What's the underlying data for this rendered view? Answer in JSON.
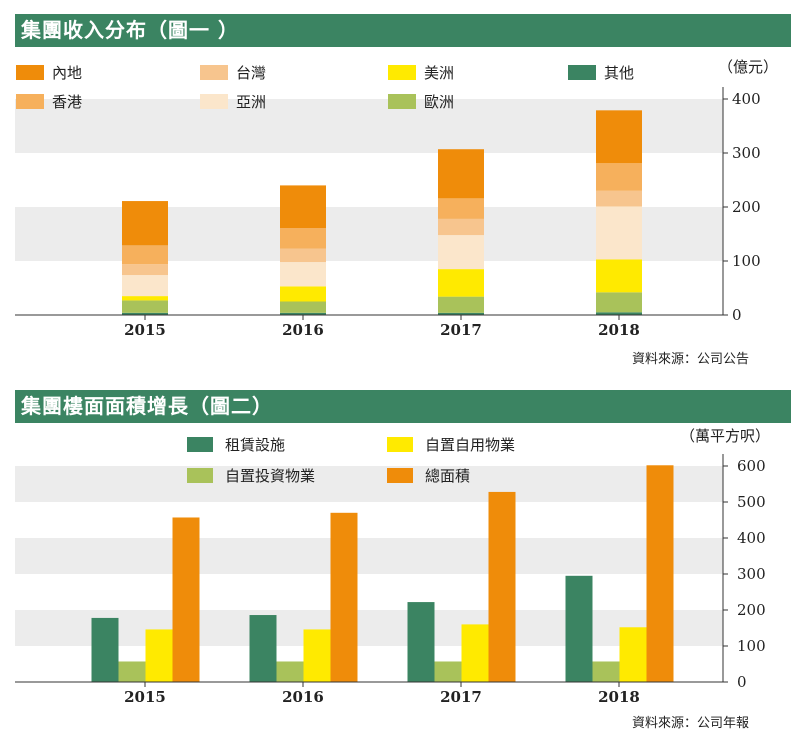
{
  "charts": {
    "chart1": {
      "title": "集團收入分布（圖一 ）",
      "unit": "（億元）",
      "source": "資料來源：公司公告"
    },
    "chart2": {
      "title": "集團樓面面積增長（圖二）",
      "unit": "（萬平方呎）",
      "source": "資料來源：公司年報"
    }
  },
  "chart_data": [
    {
      "type": "bar",
      "stacked": true,
      "title": "集團收入分布（圖一 ）",
      "ylabel": "（億元）",
      "ylim": [
        0,
        400
      ],
      "yticks": [
        0,
        100,
        200,
        300,
        400
      ],
      "categories": [
        "2015",
        "2016",
        "2017",
        "2018"
      ],
      "series": [
        {
          "name": "其他",
          "color": "#3b8462",
          "values": [
            4,
            4,
            4,
            5
          ]
        },
        {
          "name": "歐洲",
          "color": "#a9c25a",
          "values": [
            23,
            21,
            30,
            37
          ]
        },
        {
          "name": "美洲",
          "color": "#ffea00",
          "values": [
            8,
            28,
            51,
            61
          ]
        },
        {
          "name": "亞洲",
          "color": "#fbe6cb",
          "values": [
            39,
            45,
            63,
            98
          ]
        },
        {
          "name": "台灣",
          "color": "#f7c58e",
          "values": [
            20,
            25,
            30,
            29
          ]
        },
        {
          "name": "香港",
          "color": "#f6b05c",
          "values": [
            35,
            38,
            38,
            51
          ]
        },
        {
          "name": "內地",
          "color": "#ef8c0a",
          "values": [
            82,
            79,
            91,
            98
          ]
        }
      ],
      "legend": [
        "內地",
        "台灣",
        "美洲",
        "其他",
        "香港",
        "亞洲",
        "歐洲"
      ]
    },
    {
      "type": "bar",
      "stacked": false,
      "title": "集團樓面面積增長（圖二）",
      "ylabel": "（萬平方呎）",
      "ylim": [
        0,
        600
      ],
      "yticks": [
        0,
        100,
        200,
        300,
        400,
        500,
        600
      ],
      "categories": [
        "2015",
        "2016",
        "2017",
        "2018"
      ],
      "series": [
        {
          "name": "租賃設施",
          "color": "#3b8462",
          "values": [
            178,
            186,
            222,
            295
          ]
        },
        {
          "name": "自置投資物業",
          "color": "#a9c25a",
          "values": [
            57,
            57,
            57,
            57
          ]
        },
        {
          "name": "自置自用物業",
          "color": "#ffea00",
          "values": [
            146,
            146,
            160,
            152
          ]
        },
        {
          "name": "總面積",
          "color": "#ef8c0a",
          "values": [
            457,
            470,
            528,
            602
          ]
        }
      ],
      "legend": [
        "租賃設施",
        "自置自用物業",
        "自置投資物業",
        "總面積"
      ]
    }
  ]
}
